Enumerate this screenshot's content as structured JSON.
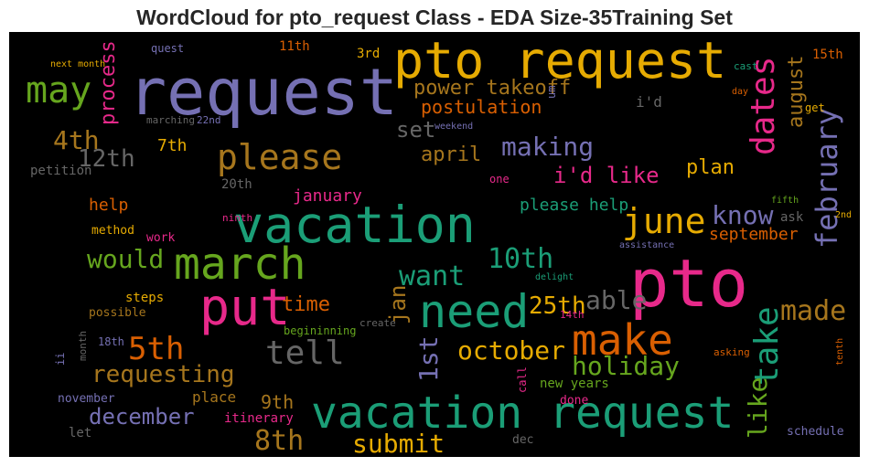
{
  "chart_data": {
    "type": "wordcloud",
    "title": "WordCloud for pto_request Class - EDA Size-35Training Set",
    "words": [
      {
        "text": "request",
        "color": "#7570b3"
      },
      {
        "text": "pto request",
        "color": "#e6ab02"
      },
      {
        "text": "vacation",
        "color": "#1b9e77"
      },
      {
        "text": "pto",
        "color": "#e7298a"
      },
      {
        "text": "vacation request",
        "color": "#1b9e77"
      },
      {
        "text": "march",
        "color": "#66a61e"
      },
      {
        "text": "put",
        "color": "#e7298a"
      },
      {
        "text": "need",
        "color": "#1b9e77"
      },
      {
        "text": "make",
        "color": "#d95f02"
      },
      {
        "text": "may",
        "color": "#66a61e"
      },
      {
        "text": "please",
        "color": "#a6761d"
      },
      {
        "text": "june",
        "color": "#e6ab02"
      },
      {
        "text": "dates",
        "color": "#e7298a"
      },
      {
        "text": "february",
        "color": "#7570b3"
      },
      {
        "text": "take",
        "color": "#1b9e77"
      },
      {
        "text": "like",
        "color": "#66a61e"
      },
      {
        "text": "august",
        "color": "#a6761d"
      },
      {
        "text": "process",
        "color": "#e7298a"
      },
      {
        "text": "1st",
        "color": "#7570b3"
      },
      {
        "text": "jan",
        "color": "#a6761d"
      },
      {
        "text": "making",
        "color": "#7570b3"
      },
      {
        "text": "power takeoff",
        "color": "#a6761d"
      },
      {
        "text": "postulation",
        "color": "#d95f02"
      },
      {
        "text": "set",
        "color": "#666666"
      },
      {
        "text": "4th",
        "color": "#a6761d"
      },
      {
        "text": "12th",
        "color": "#666666"
      },
      {
        "text": "7th",
        "color": "#e6ab02"
      },
      {
        "text": "april",
        "color": "#a6761d"
      },
      {
        "text": "i'd like",
        "color": "#e7298a"
      },
      {
        "text": "plan",
        "color": "#e6ab02"
      },
      {
        "text": "know",
        "color": "#7570b3"
      },
      {
        "text": "september",
        "color": "#d95f02"
      },
      {
        "text": "ask",
        "color": "#666666"
      },
      {
        "text": "please help",
        "color": "#1b9e77"
      },
      {
        "text": "january",
        "color": "#e7298a"
      },
      {
        "text": "20th",
        "color": "#666666"
      },
      {
        "text": "help",
        "color": "#d95f02"
      },
      {
        "text": "method",
        "color": "#e6ab02"
      },
      {
        "text": "work",
        "color": "#e7298a"
      },
      {
        "text": "would",
        "color": "#66a61e"
      },
      {
        "text": "10th",
        "color": "#1b9e77"
      },
      {
        "text": "want",
        "color": "#1b9e77"
      },
      {
        "text": "able",
        "color": "#666666"
      },
      {
        "text": "25th",
        "color": "#e6ab02"
      },
      {
        "text": "time",
        "color": "#d95f02"
      },
      {
        "text": "made",
        "color": "#a6761d"
      },
      {
        "text": "steps",
        "color": "#e6ab02"
      },
      {
        "text": "possible",
        "color": "#a6761d"
      },
      {
        "text": "5th",
        "color": "#d95f02"
      },
      {
        "text": "tell",
        "color": "#666666"
      },
      {
        "text": "october",
        "color": "#e6ab02"
      },
      {
        "text": "holiday",
        "color": "#66a61e"
      },
      {
        "text": "requesting",
        "color": "#a6761d"
      },
      {
        "text": "begininning",
        "color": "#66a61e"
      },
      {
        "text": "create",
        "color": "#666666"
      },
      {
        "text": "14th",
        "color": "#e7298a"
      },
      {
        "text": "18th",
        "color": "#7570b3"
      },
      {
        "text": "9th",
        "color": "#a6761d"
      },
      {
        "text": "december",
        "color": "#7570b3"
      },
      {
        "text": "place",
        "color": "#a6761d"
      },
      {
        "text": "november",
        "color": "#7570b3"
      },
      {
        "text": "itinerary",
        "color": "#e7298a"
      },
      {
        "text": "let",
        "color": "#666666"
      },
      {
        "text": "8th",
        "color": "#a6761d"
      },
      {
        "text": "submit",
        "color": "#e6ab02"
      },
      {
        "text": "new years",
        "color": "#66a61e"
      },
      {
        "text": "done",
        "color": "#e7298a"
      },
      {
        "text": "dec",
        "color": "#666666"
      },
      {
        "text": "schedule",
        "color": "#7570b3"
      },
      {
        "text": "call",
        "color": "#e7298a"
      },
      {
        "text": "ii",
        "color": "#7570b3"
      },
      {
        "text": "month",
        "color": "#666666"
      },
      {
        "text": "asking",
        "color": "#d95f02"
      },
      {
        "text": "tenth",
        "color": "#d95f02"
      },
      {
        "text": "quest",
        "color": "#7570b3"
      },
      {
        "text": "11th",
        "color": "#d95f02"
      },
      {
        "text": "3rd",
        "color": "#e6ab02"
      },
      {
        "text": "next month",
        "color": "#e6ab02"
      },
      {
        "text": "marching",
        "color": "#666666"
      },
      {
        "text": "22nd",
        "color": "#7570b3"
      },
      {
        "text": "petition",
        "color": "#666666"
      },
      {
        "text": "one",
        "color": "#e7298a"
      },
      {
        "text": "cast",
        "color": "#1b9e77"
      },
      {
        "text": "15th",
        "color": "#d95f02"
      },
      {
        "text": "day",
        "color": "#d95f02"
      },
      {
        "text": "get",
        "color": "#e6ab02"
      },
      {
        "text": "i'd",
        "color": "#666666"
      },
      {
        "text": "weekend",
        "color": "#7570b3"
      },
      {
        "text": "um",
        "color": "#7570b3"
      },
      {
        "text": "fifth",
        "color": "#66a61e"
      },
      {
        "text": "2nd",
        "color": "#e6ab02"
      },
      {
        "text": "ninth",
        "color": "#e7298a"
      },
      {
        "text": "assistance",
        "color": "#7570b3"
      },
      {
        "text": "delight",
        "color": "#1b9e77"
      }
    ]
  }
}
